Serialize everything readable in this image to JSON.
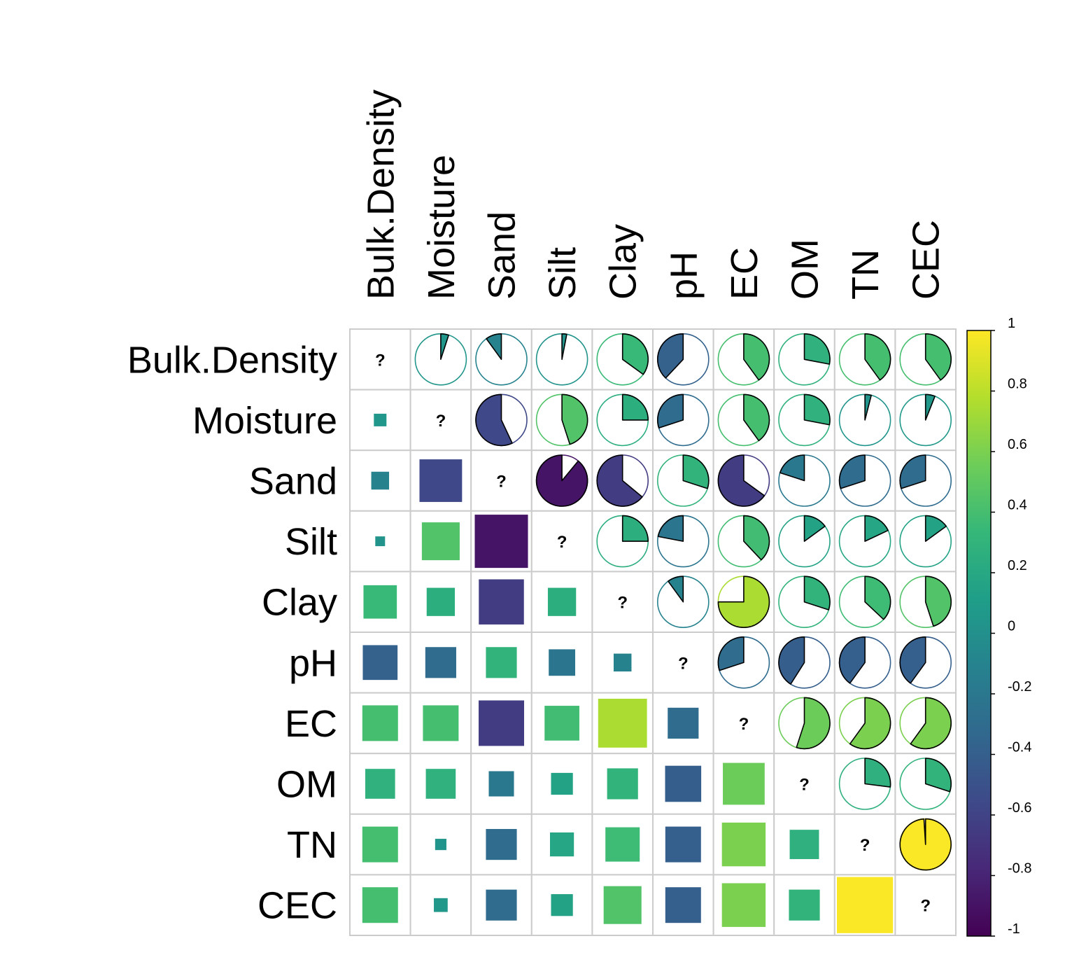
{
  "chart_data": {
    "type": "heatmap",
    "variables": [
      "Bulk.Density",
      "Moisture",
      "Sand",
      "Silt",
      "Clay",
      "pH",
      "EC",
      "OM",
      "TN",
      "CEC"
    ],
    "lower_glyph": "square",
    "upper_glyph": "pie",
    "diagonal_label": "?",
    "matrix": [
      [
        1.0,
        0.05,
        -0.1,
        0.03,
        0.35,
        -0.38,
        0.4,
        0.28,
        0.4,
        0.4
      ],
      [
        0.05,
        1.0,
        -0.57,
        0.45,
        0.25,
        -0.3,
        0.4,
        0.28,
        0.04,
        0.06
      ],
      [
        -0.1,
        -0.57,
        1.0,
        -0.89,
        -0.64,
        0.3,
        -0.65,
        -0.2,
        -0.3,
        -0.3
      ],
      [
        0.03,
        0.45,
        -0.89,
        1.0,
        0.25,
        -0.22,
        0.38,
        0.15,
        0.18,
        0.15
      ],
      [
        0.35,
        0.25,
        -0.64,
        0.25,
        1.0,
        -0.1,
        0.75,
        0.3,
        0.37,
        0.45
      ],
      [
        -0.38,
        -0.3,
        0.3,
        -0.22,
        -0.1,
        1.0,
        -0.3,
        -0.41,
        -0.4,
        -0.4
      ],
      [
        0.4,
        0.4,
        -0.65,
        0.38,
        0.75,
        -0.3,
        1.0,
        0.55,
        0.6,
        0.6
      ],
      [
        0.28,
        0.28,
        -0.2,
        0.15,
        0.3,
        -0.41,
        0.55,
        1.0,
        0.27,
        0.3
      ],
      [
        0.4,
        0.04,
        -0.3,
        0.18,
        0.37,
        -0.4,
        0.6,
        0.27,
        1.0,
        0.99
      ],
      [
        0.4,
        0.06,
        -0.3,
        0.15,
        0.45,
        -0.4,
        0.6,
        0.3,
        0.99,
        1.0
      ]
    ],
    "colorbar": {
      "range": [
        -1,
        1
      ],
      "ticks": [
        "1",
        "0.8",
        "0.6",
        "0.4",
        "0.2",
        "0",
        "-0.2",
        "-0.4",
        "-0.6",
        "-0.8",
        "-1"
      ]
    },
    "palette": [
      "#440154",
      "#482878",
      "#3E4A89",
      "#31688E",
      "#26828E",
      "#1F9E89",
      "#35B779",
      "#6DCD59",
      "#B4DE2C",
      "#FDE725"
    ],
    "grid_color": "#CCCCCC"
  }
}
